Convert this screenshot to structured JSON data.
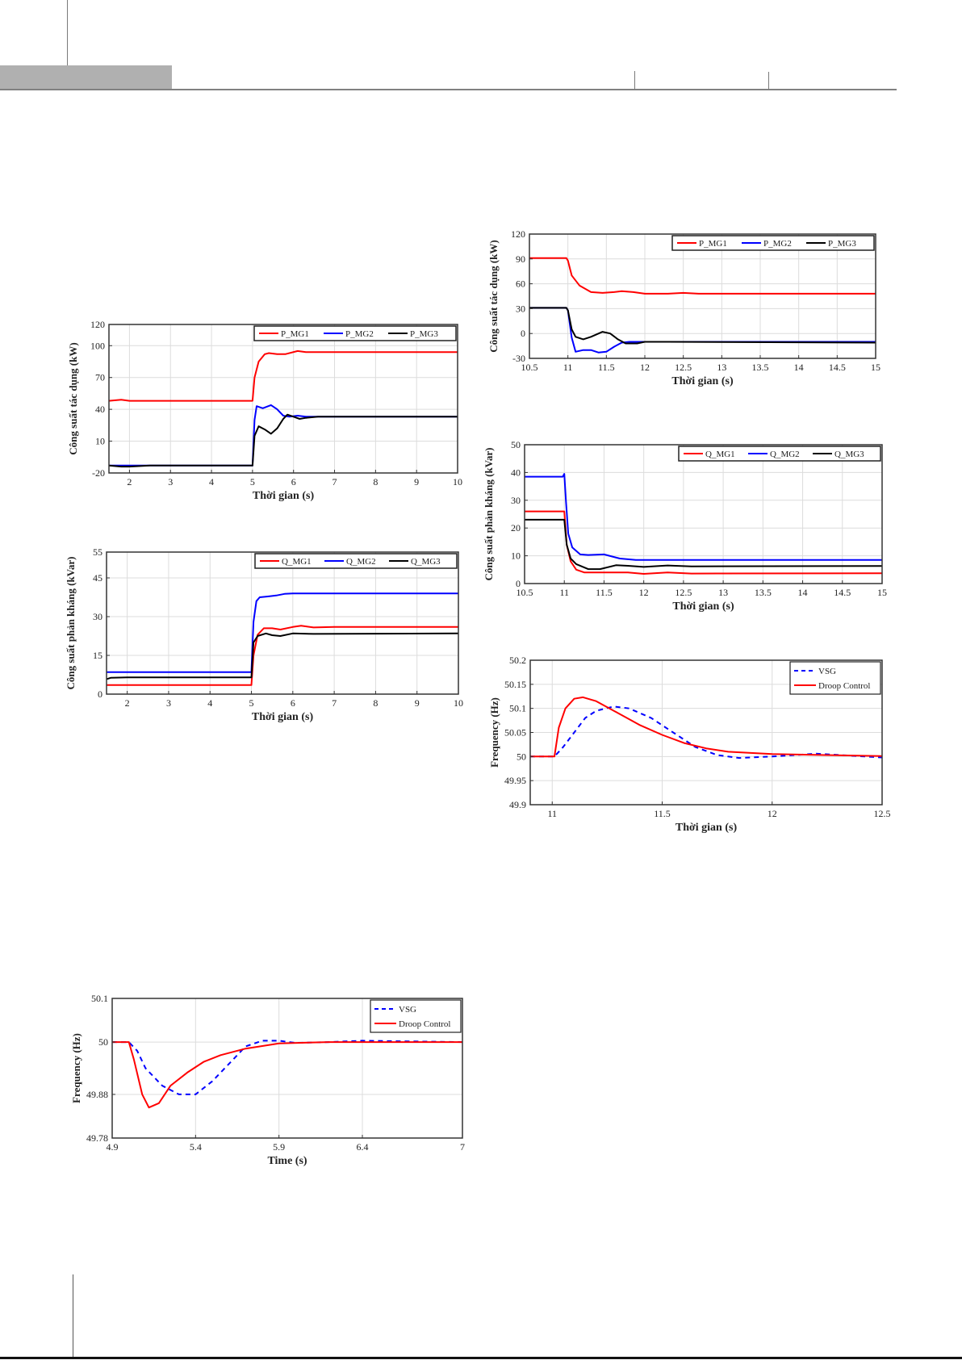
{
  "page": {
    "header_decor": "gray-tab-with-rule"
  },
  "chart_data": [
    {
      "id": "p-left",
      "type": "line",
      "title": "",
      "xlabel": "Thời gian (s)",
      "ylabel": "Công suất tác dụng (kW)",
      "xlim": [
        1.5,
        10
      ],
      "ylim": [
        -20,
        120
      ],
      "xticks": [
        2,
        3,
        4,
        5,
        6,
        7,
        8,
        9,
        10
      ],
      "yticks": [
        -20,
        10,
        40,
        70,
        100,
        120
      ],
      "grid": true,
      "legend": "top-right-horizontal",
      "series": [
        {
          "name": "P_MG1",
          "color": "#ff0000",
          "dash": false,
          "x": [
            1.5,
            1.8,
            2.0,
            4.98,
            5.0,
            5.05,
            5.15,
            5.3,
            5.4,
            5.6,
            5.8,
            6.1,
            6.3,
            6.6,
            7.0,
            8.0,
            10.0
          ],
          "y": [
            48,
            49,
            48,
            48,
            48,
            70,
            85,
            92,
            93,
            92,
            92,
            95,
            94,
            94,
            94,
            94,
            94
          ]
        },
        {
          "name": "P_MG2",
          "color": "#0000ff",
          "dash": false,
          "x": [
            1.5,
            2.0,
            2.5,
            4.98,
            5.0,
            5.05,
            5.1,
            5.25,
            5.45,
            5.6,
            5.75,
            5.9,
            6.1,
            6.3,
            6.5,
            6.9,
            7.2,
            10.0
          ],
          "y": [
            -13,
            -13,
            -13,
            -13,
            -13,
            30,
            43,
            41,
            44,
            40,
            34,
            33,
            34,
            33,
            33,
            33,
            33,
            33
          ]
        },
        {
          "name": "P_MG3",
          "color": "#000000",
          "dash": false,
          "x": [
            1.5,
            1.8,
            2.0,
            2.5,
            4.98,
            5.0,
            5.05,
            5.15,
            5.3,
            5.45,
            5.6,
            5.75,
            5.85,
            6.0,
            6.15,
            6.3,
            6.6,
            7.0,
            10.0
          ],
          "y": [
            -13,
            -14,
            -14,
            -13,
            -13,
            -13,
            15,
            24,
            21,
            17,
            22,
            31,
            35,
            33,
            31,
            32,
            33,
            33,
            33
          ]
        }
      ]
    },
    {
      "id": "q-left",
      "type": "line",
      "title": "",
      "xlabel": "Thời gian (s)",
      "ylabel": "Công suất phản kháng (kVar)",
      "xlim": [
        1.5,
        10
      ],
      "ylim": [
        0,
        55
      ],
      "xticks": [
        2,
        3,
        4,
        5,
        6,
        7,
        8,
        9,
        10
      ],
      "yticks": [
        0,
        15,
        30,
        45,
        55
      ],
      "grid": true,
      "legend": "top-right-horizontal",
      "series": [
        {
          "name": "Q_MG1",
          "color": "#ff0000",
          "dash": false,
          "x": [
            1.5,
            4.97,
            5.0,
            5.05,
            5.15,
            5.3,
            5.5,
            5.7,
            6.0,
            6.2,
            6.5,
            7.0,
            10.0
          ],
          "y": [
            3.5,
            3.5,
            3.5,
            15,
            23,
            25.5,
            25.5,
            25,
            26,
            26.5,
            25.8,
            26,
            26
          ]
        },
        {
          "name": "Q_MG2",
          "color": "#0000ff",
          "dash": false,
          "x": [
            1.5,
            4.97,
            5.0,
            5.05,
            5.12,
            5.2,
            5.4,
            5.6,
            5.8,
            6.0,
            7.0,
            10.0
          ],
          "y": [
            8.5,
            8.5,
            8.5,
            28,
            36,
            37.5,
            37.8,
            38.2,
            38.8,
            39,
            39,
            39
          ]
        },
        {
          "name": "Q_MG3",
          "color": "#000000",
          "dash": false,
          "x": [
            1.5,
            1.6,
            2.0,
            4.97,
            5.0,
            5.05,
            5.15,
            5.35,
            5.5,
            5.7,
            6.0,
            6.5,
            10.0
          ],
          "y": [
            5.8,
            6.3,
            6.5,
            6.5,
            6.5,
            20,
            22.5,
            23.5,
            22.8,
            22.5,
            23.5,
            23.3,
            23.5
          ]
        }
      ]
    },
    {
      "id": "f-left",
      "type": "line",
      "title": "",
      "xlabel": "Time (s)",
      "ylabel": "Frequency (Hz)",
      "xlim": [
        4.9,
        7
      ],
      "ylim": [
        49.78,
        50.1
      ],
      "xticks": [
        4.9,
        5.4,
        5.9,
        6.4,
        7
      ],
      "yticks": [
        49.78,
        49.88,
        50,
        50.1
      ],
      "ytick_labels": [
        "49.78",
        "49.88",
        "50",
        "50.1"
      ],
      "grid": true,
      "legend": "top-right",
      "series": [
        {
          "name": "VSG",
          "color": "#0000ff",
          "dash": true,
          "x": [
            4.9,
            5.0,
            5.05,
            5.1,
            5.2,
            5.3,
            5.4,
            5.5,
            5.6,
            5.7,
            5.8,
            5.9,
            6.0,
            6.2,
            6.4,
            6.6,
            7.0
          ],
          "y": [
            50,
            50,
            49.98,
            49.94,
            49.9,
            49.88,
            49.88,
            49.91,
            49.95,
            49.99,
            50.003,
            50.003,
            49.998,
            50,
            50.003,
            50.002,
            50
          ]
        },
        {
          "name": "Droop Control",
          "color": "#ff0000",
          "dash": false,
          "x": [
            4.9,
            5.0,
            5.03,
            5.08,
            5.12,
            5.18,
            5.25,
            5.35,
            5.45,
            5.55,
            5.7,
            5.9,
            6.2,
            7.0
          ],
          "y": [
            50,
            50,
            49.96,
            49.88,
            49.85,
            49.86,
            49.9,
            49.93,
            49.955,
            49.97,
            49.985,
            49.997,
            50,
            50
          ]
        }
      ],
      "legend_entries": [
        "VSG",
        "Droop Control"
      ]
    },
    {
      "id": "p-right",
      "type": "line",
      "title": "",
      "xlabel": "Thời gian (s)",
      "ylabel": "Công suất tác dụng (kW)",
      "xlim": [
        10.5,
        15
      ],
      "ylim": [
        -30,
        120
      ],
      "xticks": [
        10.5,
        11,
        11.5,
        12,
        12.5,
        13,
        13.5,
        14,
        14.5,
        15
      ],
      "yticks": [
        -30,
        0,
        30,
        60,
        90,
        120
      ],
      "grid": true,
      "legend": "top-right-horizontal",
      "series": [
        {
          "name": "P_MG1",
          "color": "#ff0000",
          "dash": false,
          "x": [
            10.5,
            10.98,
            11.0,
            11.05,
            11.15,
            11.3,
            11.45,
            11.6,
            11.7,
            11.85,
            12.0,
            12.3,
            12.5,
            12.7,
            15.0
          ],
          "y": [
            91,
            91,
            88,
            70,
            58,
            50,
            49,
            50,
            51,
            50,
            48,
            48,
            49,
            48,
            48
          ]
        },
        {
          "name": "P_MG2",
          "color": "#0000ff",
          "dash": false,
          "x": [
            10.5,
            10.98,
            11.0,
            11.05,
            11.1,
            11.2,
            11.3,
            11.4,
            11.5,
            11.6,
            11.7,
            11.8,
            12.0,
            12.5,
            15.0
          ],
          "y": [
            31,
            31,
            28,
            -5,
            -22,
            -20,
            -20,
            -23,
            -22,
            -16,
            -11,
            -10,
            -10,
            -10,
            -10
          ]
        },
        {
          "name": "P_MG3",
          "color": "#000000",
          "dash": false,
          "x": [
            10.5,
            10.98,
            11.0,
            11.05,
            11.1,
            11.2,
            11.3,
            11.45,
            11.55,
            11.65,
            11.75,
            11.9,
            12.0,
            12.3,
            15.0
          ],
          "y": [
            31,
            31,
            28,
            5,
            -4,
            -7,
            -4,
            2,
            0,
            -7,
            -12,
            -12,
            -10,
            -10,
            -11
          ]
        }
      ]
    },
    {
      "id": "q-right",
      "type": "line",
      "title": "",
      "xlabel": "Thời gian (s)",
      "ylabel": "Công suất phản kháng (kVar)",
      "xlim": [
        10.5,
        15
      ],
      "ylim": [
        0,
        50
      ],
      "xticks": [
        10.5,
        11,
        11.5,
        12,
        12.5,
        13,
        13.5,
        14,
        14.5,
        15
      ],
      "yticks": [
        0,
        10,
        20,
        30,
        40,
        50
      ],
      "grid": true,
      "legend": "top-right-horizontal",
      "series": [
        {
          "name": "Q_MG1",
          "color": "#ff0000",
          "dash": false,
          "x": [
            10.5,
            10.98,
            11.0,
            11.03,
            11.08,
            11.15,
            11.25,
            11.5,
            11.8,
            12.0,
            12.3,
            12.6,
            15.0
          ],
          "y": [
            26,
            26,
            26,
            14,
            8,
            5,
            4,
            4,
            4,
            3.5,
            4,
            3.6,
            3.7
          ]
        },
        {
          "name": "Q_MG2",
          "color": "#0000ff",
          "dash": false,
          "x": [
            10.5,
            10.98,
            11.0,
            11.02,
            11.05,
            11.1,
            11.2,
            11.3,
            11.5,
            11.7,
            11.9,
            12.1,
            15.0
          ],
          "y": [
            38.5,
            38.5,
            39.5,
            30,
            18,
            13,
            10.5,
            10.3,
            10.5,
            9,
            8.5,
            8.5,
            8.5
          ]
        },
        {
          "name": "Q_MG3",
          "color": "#000000",
          "dash": false,
          "x": [
            10.5,
            10.98,
            11.0,
            11.03,
            11.08,
            11.15,
            11.3,
            11.45,
            11.65,
            11.8,
            12.0,
            12.3,
            12.6,
            15.0
          ],
          "y": [
            23,
            23,
            23,
            14,
            9,
            7,
            5.2,
            5.2,
            6.6,
            6.4,
            6,
            6.5,
            6.2,
            6.3
          ]
        }
      ]
    },
    {
      "id": "f-right",
      "type": "line",
      "title": "",
      "xlabel": "Thời gian (s)",
      "ylabel": "Frequency (Hz)",
      "xlim": [
        10.9,
        12.5
      ],
      "ylim": [
        49.9,
        50.2
      ],
      "xticks": [
        11,
        11.5,
        12,
        12.5
      ],
      "yticks": [
        49.9,
        49.95,
        50,
        50.05,
        50.1,
        50.15,
        50.2
      ],
      "grid": true,
      "legend": "top-right",
      "series": [
        {
          "name": "VSG",
          "color": "#0000ff",
          "dash": true,
          "x": [
            10.9,
            11.01,
            11.05,
            11.1,
            11.15,
            11.2,
            11.28,
            11.35,
            11.45,
            11.55,
            11.65,
            11.75,
            11.85,
            12.0,
            12.2,
            12.5
          ],
          "y": [
            50,
            50,
            50.02,
            50.05,
            50.08,
            50.095,
            50.104,
            50.1,
            50.08,
            50.05,
            50.02,
            50.003,
            49.997,
            50.0,
            50.006,
            49.998
          ]
        },
        {
          "name": "Droop Control",
          "color": "#ff0000",
          "dash": false,
          "x": [
            10.9,
            11.01,
            11.03,
            11.06,
            11.1,
            11.14,
            11.2,
            11.3,
            11.4,
            11.5,
            11.6,
            11.7,
            11.8,
            12.0,
            12.5
          ],
          "y": [
            50,
            50,
            50.06,
            50.1,
            50.12,
            50.123,
            50.115,
            50.09,
            50.065,
            50.045,
            50.028,
            50.017,
            50.01,
            50.005,
            50.001
          ]
        }
      ],
      "legend_entries": [
        "VSG",
        "Droop Control"
      ]
    }
  ]
}
